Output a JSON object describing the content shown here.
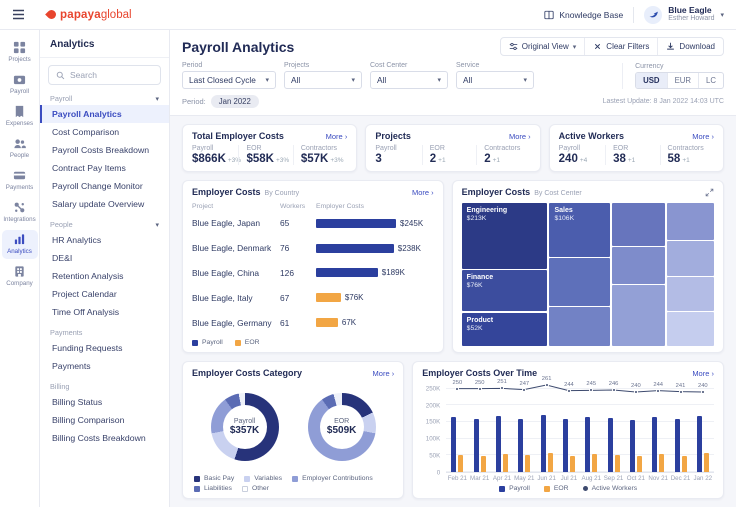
{
  "colors": {
    "brand_red": "#e8452e",
    "accent_blue": "#3b4cc0",
    "bar_blue": "#2b3f9e",
    "bar_orange": "#f2a644",
    "line_dark": "#3d4a6e"
  },
  "topbar": {
    "logo": {
      "bold": "papaya",
      "light": "global"
    },
    "knowledge_base": "Knowledge Base",
    "account": {
      "workspace": "Blue Eagle",
      "user": "Esther Howard"
    }
  },
  "rail": {
    "items": [
      {
        "id": "projects",
        "label": "Projects",
        "icon": "grid",
        "active": false
      },
      {
        "id": "payroll",
        "label": "Payroll",
        "icon": "payroll",
        "active": false
      },
      {
        "id": "expenses",
        "label": "Expenses",
        "icon": "expenses",
        "active": false
      },
      {
        "id": "people",
        "label": "People",
        "icon": "people",
        "active": false
      },
      {
        "id": "payments",
        "label": "Payments",
        "icon": "payments",
        "active": false
      },
      {
        "id": "integrations",
        "label": "Integrations",
        "icon": "integrations",
        "active": false
      },
      {
        "id": "analytics",
        "label": "Analytics",
        "icon": "analytics",
        "active": true
      },
      {
        "id": "company",
        "label": "Company",
        "icon": "company",
        "active": false
      }
    ]
  },
  "sidebar": {
    "title": "Analytics",
    "search_placeholder": "Search",
    "groups": [
      {
        "label": "Payroll",
        "collapsible": true,
        "active": "Payroll Analytics",
        "items": [
          "Payroll Analytics",
          "Cost Comparison",
          "Payroll Costs Breakdown",
          "Contract Pay Items",
          "Payroll Change Monitor",
          "Salary update Overview"
        ]
      },
      {
        "label": "People",
        "collapsible": true,
        "items": [
          "HR Analytics",
          "DE&I",
          "Retention Analysis",
          "Project Calendar",
          "Time Off Analysis"
        ]
      },
      {
        "label": "Payments",
        "collapsible": false,
        "items": [
          "Funding Requests",
          "Payments"
        ]
      },
      {
        "label": "Billing",
        "collapsible": false,
        "items": [
          "Billing Status",
          "Billing Comparison",
          "Billing Costs Breakdown"
        ]
      }
    ]
  },
  "page": {
    "title": "Payroll Analytics",
    "original_view": "Original View",
    "clear_filters": "Clear Filters",
    "download": "Download"
  },
  "filters": {
    "selects": [
      {
        "label": "Period",
        "value": "Last Closed Cycle"
      },
      {
        "label": "Projects",
        "value": "All"
      },
      {
        "label": "Cost Center",
        "value": "All"
      },
      {
        "label": "Service",
        "value": "All"
      }
    ],
    "currency_label": "Currency",
    "currency_options": [
      "USD",
      "EUR",
      "LC"
    ],
    "currency_selected": "USD",
    "period_label": "Period:",
    "period_value": "Jan 2022",
    "last_update": "Lastest Update: 8 Jan 2022 14:03 UTC"
  },
  "summary_cards": [
    {
      "title": "Total Employer Costs",
      "more": "More",
      "metrics": [
        {
          "label": "Payroll",
          "value": "$866K",
          "delta": "+3%"
        },
        {
          "label": "EOR",
          "value": "$58K",
          "delta": "+3%"
        },
        {
          "label": "Contractors",
          "value": "$57K",
          "delta": "+3%"
        }
      ]
    },
    {
      "title": "Projects",
      "more": "More",
      "metrics": [
        {
          "label": "Payroll",
          "value": "3",
          "delta": ""
        },
        {
          "label": "EOR",
          "value": "2",
          "delta": "+1"
        },
        {
          "label": "Contractors",
          "value": "2",
          "delta": "+1"
        }
      ]
    },
    {
      "title": "Active Workers",
      "more": "More",
      "metrics": [
        {
          "label": "Payroll",
          "value": "240",
          "delta": "+4"
        },
        {
          "label": "EOR",
          "value": "38",
          "delta": "+1"
        },
        {
          "label": "Contractors",
          "value": "58",
          "delta": "+1"
        }
      ]
    }
  ],
  "by_country": {
    "title": "Employer Costs",
    "subtitle": "By Country",
    "more": "More",
    "columns": [
      "Project",
      "Workers",
      "Employer Costs"
    ],
    "rows": [
      {
        "project": "Blue Eagle, Japan",
        "workers": "65",
        "value_k": 245,
        "value_label": "$245K",
        "series": "Payroll"
      },
      {
        "project": "Blue Eagle, Denmark",
        "workers": "76",
        "value_k": 238,
        "value_label": "$238K",
        "series": "Payroll"
      },
      {
        "project": "Blue Eagle, China",
        "workers": "126",
        "value_k": 189,
        "value_label": "$189K",
        "series": "Payroll"
      },
      {
        "project": "Blue Eagle, Italy",
        "workers": "67",
        "value_k": 76,
        "value_label": "$76K",
        "series": "EOR"
      },
      {
        "project": "Blue Eagle, Germany",
        "workers": "61",
        "value_k": 67,
        "value_label": "67K",
        "series": "EOR"
      }
    ],
    "legend": [
      {
        "label": "Payroll",
        "color": "#2b3f9e"
      },
      {
        "label": "EOR",
        "color": "#f2a644"
      }
    ]
  },
  "by_cost_center": {
    "title": "Employer Costs",
    "subtitle": "By Cost Center",
    "blocks": [
      {
        "label": "Engineering",
        "value": "$213K"
      },
      {
        "label": "Sales",
        "value": "$106K"
      },
      {
        "label": "Finance",
        "value": "$76K"
      },
      {
        "label": "Product",
        "value": "$52K"
      }
    ]
  },
  "category": {
    "title": "Employer Costs Category",
    "more": "More",
    "donuts": [
      {
        "label": "Payroll",
        "value": "$357K",
        "segments": [
          {
            "label": "Basic Pay",
            "pct": 55,
            "color": "#27337a"
          },
          {
            "label": "Variables",
            "pct": 17,
            "color": "#c9d1f0"
          },
          {
            "label": "Employer Contributions",
            "pct": 18,
            "color": "#8f9dd6"
          },
          {
            "label": "Liabilities",
            "pct": 7,
            "color": "#5b6cb4"
          },
          {
            "label": "Other",
            "pct": 3,
            "color": "#eef1f9"
          }
        ]
      },
      {
        "label": "EOR",
        "value": "$509K",
        "segments": [
          {
            "label": "Basic Pay",
            "pct": 18,
            "color": "#27337a"
          },
          {
            "label": "Variables",
            "pct": 10,
            "color": "#c9d1f0"
          },
          {
            "label": "Employer Contributions",
            "pct": 62,
            "color": "#8f9dd6"
          },
          {
            "label": "Liabilities",
            "pct": 6,
            "color": "#5b6cb4"
          },
          {
            "label": "Other",
            "pct": 4,
            "color": "#eef1f9"
          }
        ]
      }
    ],
    "legend": [
      {
        "label": "Basic Pay",
        "color": "#27337a",
        "border": false
      },
      {
        "label": "Variables",
        "color": "#c9d1f0",
        "border": false
      },
      {
        "label": "Employer Contributions",
        "color": "#8f9dd6",
        "border": false
      },
      {
        "label": "Liabilities",
        "color": "#5b6cb4",
        "border": false
      },
      {
        "label": "Other",
        "color": "#ffffff",
        "border": true
      }
    ]
  },
  "over_time": {
    "title": "Employer Costs Over Time",
    "more": "More",
    "y_max": 270,
    "y_ticks": [
      {
        "label": "250K",
        "value": 250
      },
      {
        "label": "200K",
        "value": 200
      },
      {
        "label": "150K",
        "value": 150
      },
      {
        "label": "100K",
        "value": 100
      },
      {
        "label": "50K",
        "value": 50
      },
      {
        "label": "0",
        "value": 0
      }
    ],
    "points": [
      {
        "month": "Feb 21",
        "payroll_k": 165,
        "eor_k": 52,
        "workers": 250
      },
      {
        "month": "Mar 21",
        "payroll_k": 160,
        "eor_k": 48,
        "workers": 250
      },
      {
        "month": "Apr 21",
        "payroll_k": 168,
        "eor_k": 55,
        "workers": 251
      },
      {
        "month": "May 21",
        "payroll_k": 158,
        "eor_k": 50,
        "workers": 247
      },
      {
        "month": "Jun 21",
        "payroll_k": 170,
        "eor_k": 58,
        "workers": 261
      },
      {
        "month": "Jul 21",
        "payroll_k": 160,
        "eor_k": 48,
        "workers": 244
      },
      {
        "month": "Aug 21",
        "payroll_k": 165,
        "eor_k": 54,
        "workers": 245
      },
      {
        "month": "Sep 21",
        "payroll_k": 162,
        "eor_k": 50,
        "workers": 246
      },
      {
        "month": "Oct 21",
        "payroll_k": 156,
        "eor_k": 47,
        "workers": 240
      },
      {
        "month": "Nov 21",
        "payroll_k": 166,
        "eor_k": 55,
        "workers": 244
      },
      {
        "month": "Dec 21",
        "payroll_k": 158,
        "eor_k": 49,
        "workers": 241
      },
      {
        "month": "Jan 22",
        "payroll_k": 168,
        "eor_k": 57,
        "workers": 240
      }
    ],
    "legend": [
      {
        "label": "Payroll",
        "type": "square",
        "color": "#2b3f9e"
      },
      {
        "label": "EOR",
        "type": "square",
        "color": "#f2a644"
      },
      {
        "label": "Active Workers",
        "type": "dot",
        "color": "#3d4a6e"
      }
    ]
  }
}
